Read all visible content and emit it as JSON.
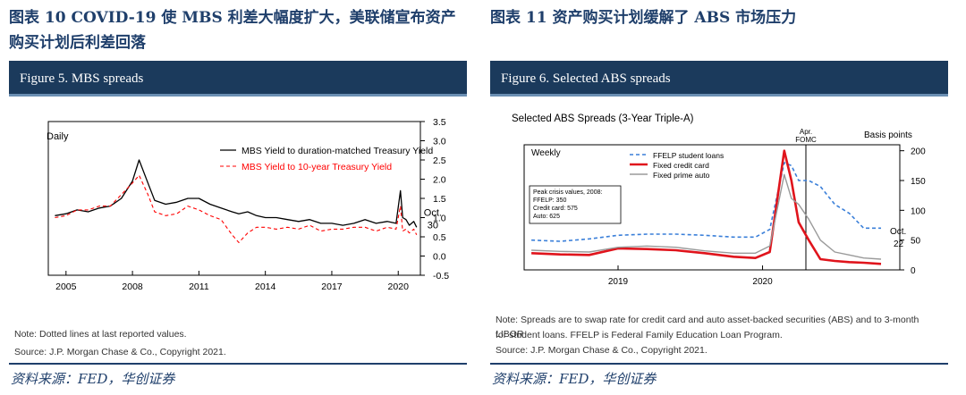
{
  "left": {
    "exhibit_title": "图表 10 COVID-19 使 MBS 利差大幅度扩大，美联储宣布资产购买计划后利差回落",
    "figure_title": "Figure 5. MBS spreads",
    "note": "Note: Dotted lines at last reported values.",
    "source": "Source: J.P. Morgan Chase & Co., Copyright 2021.",
    "source_cn": "资料来源：FED，华创证券"
  },
  "right": {
    "exhibit_title": "图表 11 资产购买计划缓解了 ABS 市场压力",
    "figure_title": "Figure 6. Selected ABS spreads",
    "note_line1": "Note: Spreads are to swap rate for credit card and auto asset-backed securities (ABS) and to 3-month LIBOR",
    "note_line2": "for student loans. FFELP is Federal Family Education Loan Program.",
    "source": "Source: J.P. Morgan Chase & Co., Copyright 2021.",
    "source_cn": "资料来源：FED，华创证券"
  },
  "chart_data": [
    {
      "type": "line",
      "frequency_label": "Daily",
      "end_label": [
        "Oct.",
        "30"
      ],
      "x": [
        2004.5,
        2005,
        2005.5,
        2006,
        2006.5,
        2007,
        2007.5,
        2008,
        2008.3,
        2008.7,
        2009,
        2009.5,
        2010,
        2010.5,
        2011,
        2011.5,
        2012,
        2012.5,
        2012.8,
        2013.2,
        2013.6,
        2014,
        2014.5,
        2015,
        2015.5,
        2016,
        2016.5,
        2017,
        2017.5,
        2018,
        2018.5,
        2019,
        2019.5,
        2019.9,
        2020.1,
        2020.2,
        2020.35,
        2020.5,
        2020.7,
        2020.83
      ],
      "xlim": [
        2004.2,
        2021.0
      ],
      "xticks": [
        "2005",
        "2008",
        "2011",
        "2014",
        "2017",
        "2020"
      ],
      "xtick_values": [
        2005,
        2008,
        2011,
        2014,
        2017,
        2020
      ],
      "ylim": [
        -0.5,
        3.5
      ],
      "yticks": [
        "-0.5",
        "0.0",
        "0.5",
        "1.0",
        "1.5",
        "2.0",
        "2.5",
        "3.0",
        "3.5"
      ],
      "ytick_values": [
        -0.5,
        0,
        0.5,
        1,
        1.5,
        2,
        2.5,
        3,
        3.5
      ],
      "series": [
        {
          "name": "MBS Yield to duration-matched Treasury Yield",
          "color": "#000000",
          "dash": "solid",
          "values": [
            1.05,
            1.1,
            1.2,
            1.15,
            1.25,
            1.3,
            1.5,
            1.95,
            2.5,
            1.9,
            1.45,
            1.35,
            1.4,
            1.5,
            1.5,
            1.35,
            1.25,
            1.15,
            1.1,
            1.15,
            1.05,
            1.0,
            1.0,
            0.95,
            0.9,
            0.95,
            0.85,
            0.85,
            0.8,
            0.85,
            0.95,
            0.85,
            0.9,
            0.85,
            1.7,
            1.0,
            0.95,
            0.8,
            0.9,
            0.75
          ]
        },
        {
          "name": "MBS Yield to 10-year Treasury Yield",
          "color": "#ff0000",
          "dash": "dashed",
          "values": [
            1.0,
            1.05,
            1.2,
            1.2,
            1.3,
            1.3,
            1.6,
            1.9,
            2.1,
            1.6,
            1.15,
            1.05,
            1.1,
            1.3,
            1.2,
            1.05,
            0.95,
            0.55,
            0.35,
            0.6,
            0.75,
            0.75,
            0.7,
            0.75,
            0.7,
            0.8,
            0.65,
            0.7,
            0.7,
            0.75,
            0.75,
            0.65,
            0.75,
            0.7,
            1.3,
            0.65,
            0.7,
            0.6,
            0.7,
            0.55
          ]
        }
      ]
    },
    {
      "type": "line",
      "title": "Selected ABS Spreads (3-Year Triple-A)",
      "frequency_label": "Weekly",
      "ylabel": "Basis points",
      "event_label": [
        "Apr.",
        "FOMC"
      ],
      "event_x": 2020.3,
      "end_label": [
        "Oct.",
        "22"
      ],
      "annotation": [
        "Peak crisis values, 2008:",
        "FFELP: 350",
        "Credit card: 575",
        "Auto: 625"
      ],
      "x": [
        2018.4,
        2018.6,
        2018.8,
        2019.0,
        2019.2,
        2019.4,
        2019.6,
        2019.8,
        2019.95,
        2020.05,
        2020.15,
        2020.2,
        2020.25,
        2020.32,
        2020.4,
        2020.5,
        2020.6,
        2020.7,
        2020.82
      ],
      "xlim": [
        2018.35,
        2020.95
      ],
      "xticks": [
        "2019",
        "2020"
      ],
      "xtick_values": [
        2019.0,
        2020.0
      ],
      "ylim": [
        0,
        210
      ],
      "yticks": [
        "0",
        "50",
        "100",
        "150",
        "200"
      ],
      "ytick_values": [
        0,
        50,
        100,
        150,
        200
      ],
      "series": [
        {
          "name": "FFELP student loans",
          "color": "#3a7fd9",
          "dash": "dashed",
          "values": [
            50,
            48,
            52,
            58,
            60,
            60,
            58,
            55,
            55,
            68,
            180,
            175,
            150,
            150,
            140,
            110,
            95,
            70,
            70
          ]
        },
        {
          "name": "Fixed credit card",
          "color": "#e0141c",
          "dash": "solid",
          "values": [
            28,
            26,
            25,
            36,
            35,
            33,
            28,
            22,
            20,
            30,
            200,
            150,
            80,
            50,
            18,
            15,
            13,
            12,
            10
          ]
        },
        {
          "name": "Fixed prime auto",
          "color": "#9a9a9a",
          "dash": "solid",
          "values": [
            33,
            31,
            30,
            38,
            40,
            38,
            32,
            28,
            28,
            40,
            160,
            120,
            110,
            85,
            50,
            30,
            25,
            20,
            18
          ]
        }
      ]
    }
  ]
}
